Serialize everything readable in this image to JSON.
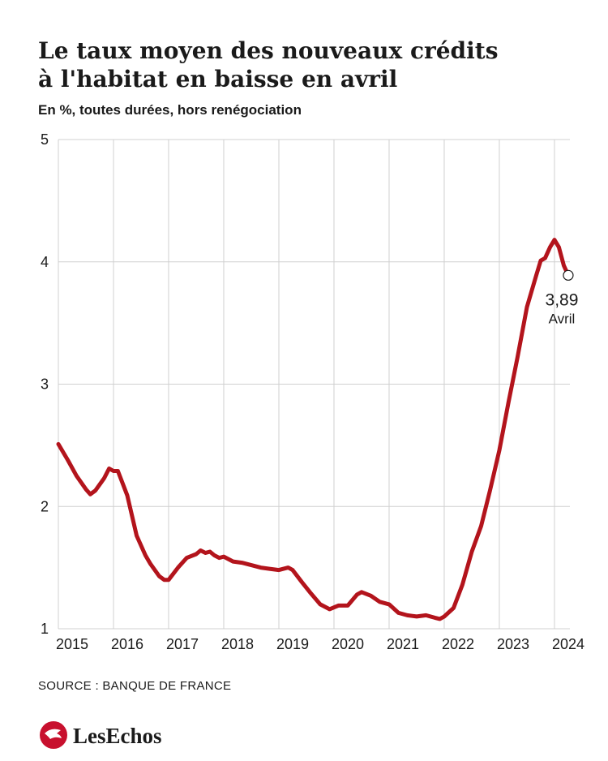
{
  "chart_data": {
    "type": "line",
    "title": [
      "Le taux moyen des nouveaux crédits",
      "à l'habitat en baisse en avril"
    ],
    "subtitle": "En %, toutes durées, hors renégociation",
    "x": [
      2015.0,
      2015.17,
      2015.33,
      2015.5,
      2015.58,
      2015.67,
      2015.83,
      2015.92,
      2016.0,
      2016.08,
      2016.25,
      2016.42,
      2016.58,
      2016.67,
      2016.83,
      2016.92,
      2017.0,
      2017.17,
      2017.33,
      2017.5,
      2017.58,
      2017.67,
      2017.75,
      2017.83,
      2017.92,
      2018.0,
      2018.17,
      2018.33,
      2018.5,
      2018.67,
      2018.83,
      2019.0,
      2019.17,
      2019.25,
      2019.42,
      2019.58,
      2019.75,
      2019.92,
      2020.08,
      2020.25,
      2020.42,
      2020.5,
      2020.67,
      2020.83,
      2021.0,
      2021.17,
      2021.33,
      2021.5,
      2021.67,
      2021.83,
      2021.92,
      2022.0,
      2022.17,
      2022.33,
      2022.5,
      2022.67,
      2022.83,
      2023.0,
      2023.17,
      2023.33,
      2023.5,
      2023.67,
      2023.75,
      2023.83,
      2023.92,
      2024.0,
      2024.08,
      2024.17,
      2024.25
    ],
    "series": [
      {
        "name": "Taux moyen",
        "color": "#b3141c",
        "values": [
          2.51,
          2.38,
          2.25,
          2.14,
          2.1,
          2.13,
          2.23,
          2.31,
          2.29,
          2.29,
          2.09,
          1.76,
          1.6,
          1.53,
          1.43,
          1.4,
          1.4,
          1.5,
          1.58,
          1.61,
          1.64,
          1.62,
          1.63,
          1.6,
          1.58,
          1.59,
          1.55,
          1.54,
          1.52,
          1.5,
          1.49,
          1.48,
          1.5,
          1.48,
          1.38,
          1.29,
          1.2,
          1.16,
          1.19,
          1.19,
          1.28,
          1.3,
          1.27,
          1.22,
          1.2,
          1.13,
          1.11,
          1.1,
          1.11,
          1.09,
          1.08,
          1.1,
          1.17,
          1.36,
          1.63,
          1.84,
          2.13,
          2.46,
          2.86,
          3.22,
          3.63,
          3.89,
          4.01,
          4.03,
          4.12,
          4.18,
          4.12,
          3.97,
          3.89
        ],
        "value_labels": [
          null,
          null,
          null,
          null,
          null,
          null,
          null,
          null,
          null,
          null,
          null,
          null,
          null,
          null,
          null,
          null,
          null,
          null,
          null,
          null,
          null,
          null,
          null,
          null,
          null,
          null,
          null,
          null,
          null,
          null,
          null,
          null,
          null,
          null,
          null,
          null,
          null,
          null,
          null,
          null,
          null,
          null,
          null,
          null,
          null,
          null,
          null,
          null,
          null,
          null,
          null,
          null,
          null,
          null,
          null,
          null,
          null,
          null,
          null,
          null,
          null,
          null,
          null,
          null,
          null,
          null,
          null,
          null,
          "3,89"
        ]
      }
    ],
    "annotations": [
      {
        "text": "Avril"
      }
    ],
    "xlim": [
      2015,
      2024.28
    ],
    "xticks": [
      2015,
      2016,
      2017,
      2018,
      2019,
      2020,
      2021,
      2022,
      2023,
      2024
    ],
    "ylim": [
      1,
      5
    ],
    "yticks": [
      1,
      2,
      3,
      4,
      5
    ],
    "grid": true,
    "source": "SOURCE : BANQUE DE FRANCE",
    "logo": "LesEchos"
  }
}
